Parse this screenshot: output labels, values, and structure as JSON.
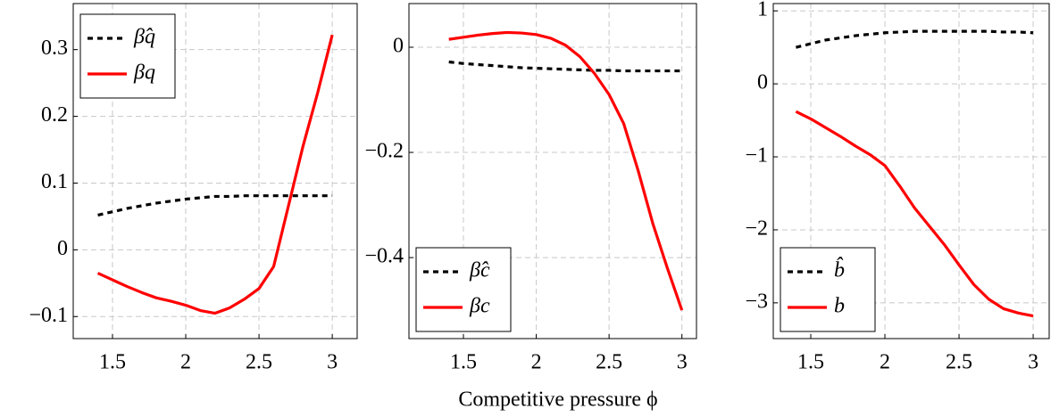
{
  "chart_data": [
    {
      "type": "line",
      "x": [
        1.4,
        1.5,
        1.6,
        1.7,
        1.8,
        1.9,
        2.0,
        2.1,
        2.2,
        2.3,
        2.4,
        2.5,
        2.6,
        2.7,
        2.8,
        2.9,
        3.0
      ],
      "series": [
        {
          "name": "β̂q",
          "color": "#000000",
          "dashed": true,
          "values": [
            0.052,
            0.057,
            0.062,
            0.066,
            0.07,
            0.073,
            0.076,
            0.078,
            0.08,
            0.08,
            0.081,
            0.081,
            0.081,
            0.081,
            0.081,
            0.081,
            0.081
          ]
        },
        {
          "name": "βq",
          "color": "#ff0000",
          "dashed": false,
          "values": [
            -0.035,
            -0.045,
            -0.055,
            -0.064,
            -0.072,
            -0.077,
            -0.083,
            -0.091,
            -0.095,
            -0.087,
            -0.074,
            -0.058,
            -0.025,
            0.065,
            0.155,
            0.235,
            0.322
          ]
        }
      ],
      "xlim": [
        1.232,
        3.17
      ],
      "ylim": [
        -0.133,
        0.369
      ],
      "xticks": [
        1.5,
        2,
        2.5,
        3
      ],
      "yticks": [
        {
          "value": -0.1,
          "label": "−0.1"
        },
        0,
        0.1,
        0.2,
        0.3
      ],
      "grid": true,
      "legend": "upper-left"
    },
    {
      "type": "line",
      "x": [
        1.4,
        1.5,
        1.6,
        1.7,
        1.8,
        1.9,
        2.0,
        2.1,
        2.2,
        2.3,
        2.4,
        2.5,
        2.6,
        2.7,
        2.8,
        2.9,
        3.0
      ],
      "xlabel": "Competitive pressure ϕ",
      "series": [
        {
          "name": "β̂c",
          "color": "#000000",
          "dashed": true,
          "values": [
            -0.028,
            -0.031,
            -0.033,
            -0.035,
            -0.037,
            -0.039,
            -0.04,
            -0.041,
            -0.042,
            -0.043,
            -0.044,
            -0.044,
            -0.045,
            -0.045,
            -0.045,
            -0.045,
            -0.045
          ]
        },
        {
          "name": "βc",
          "color": "#ff0000",
          "dashed": false,
          "values": [
            0.015,
            0.019,
            0.023,
            0.026,
            0.028,
            0.027,
            0.024,
            0.017,
            0.004,
            -0.018,
            -0.05,
            -0.09,
            -0.145,
            -0.235,
            -0.335,
            -0.42,
            -0.5
          ]
        }
      ],
      "xlim": [
        1.126,
        3.1
      ],
      "ylim": [
        -0.554,
        0.083
      ],
      "xticks": [
        1.5,
        2,
        2.5,
        3
      ],
      "yticks": [
        {
          "value": -0.4,
          "label": "−0.4"
        },
        {
          "value": -0.2,
          "label": "−0.2"
        },
        0
      ],
      "grid": true,
      "legend": "lower-left"
    },
    {
      "type": "line",
      "x": [
        1.4,
        1.5,
        1.6,
        1.7,
        1.8,
        1.9,
        2.0,
        2.1,
        2.2,
        2.3,
        2.4,
        2.5,
        2.6,
        2.7,
        2.8,
        2.9,
        3.0
      ],
      "series": [
        {
          "name": "b̂",
          "color": "#000000",
          "dashed": true,
          "values": [
            0.5,
            0.55,
            0.6,
            0.63,
            0.66,
            0.68,
            0.7,
            0.71,
            0.72,
            0.72,
            0.72,
            0.72,
            0.72,
            0.72,
            0.71,
            0.71,
            0.7
          ]
        },
        {
          "name": "b",
          "color": "#ff0000",
          "dashed": false,
          "values": [
            -0.38,
            -0.48,
            -0.6,
            -0.72,
            -0.85,
            -0.97,
            -1.12,
            -1.4,
            -1.7,
            -1.95,
            -2.2,
            -2.48,
            -2.75,
            -2.95,
            -3.08,
            -3.14,
            -3.18
          ]
        }
      ],
      "xlim": [
        1.247,
        3.108
      ],
      "ylim": [
        -3.49,
        1.1
      ],
      "xticks": [
        1.5,
        2,
        2.5,
        3
      ],
      "yticks": [
        {
          "value": -3,
          "label": "−3"
        },
        {
          "value": -2,
          "label": "−2"
        },
        {
          "value": -1,
          "label": "−1"
        },
        0,
        1
      ],
      "grid": true,
      "legend": "lower-left"
    }
  ]
}
